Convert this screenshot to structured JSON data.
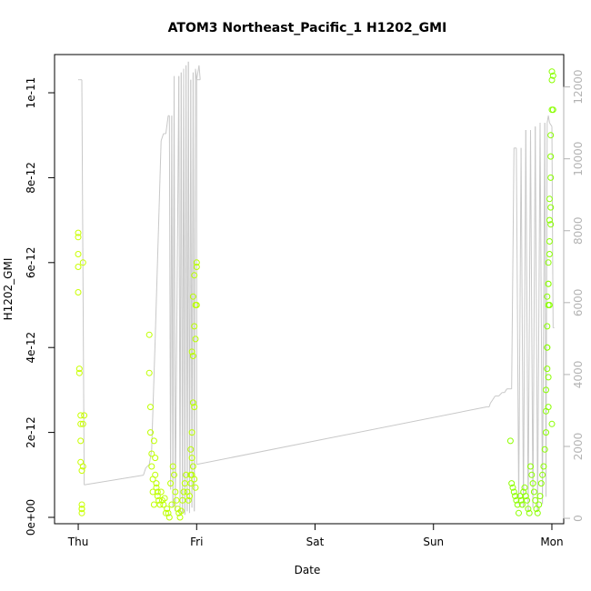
{
  "chart_data": {
    "type": "scatter",
    "title": "ATOM3 Northeast_Pacific_1 H1202_GMI",
    "xlabel": "Date",
    "ylabel": "H1202_GMI",
    "x_ticks": [
      "Thu",
      "Fri",
      "Sat",
      "Sun",
      "Mon"
    ],
    "x_unit": "days since Thu 00:00",
    "xlim": [
      -0.2,
      4.1
    ],
    "ylim": [
      -1.5e-13,
      1.09e-11
    ],
    "y_ticks": [
      {
        "value": 0,
        "label": "0e+00"
      },
      {
        "value": 2e-12,
        "label": "2e-12"
      },
      {
        "value": 4e-12,
        "label": "4e-12"
      },
      {
        "value": 6e-12,
        "label": "6e-12"
      },
      {
        "value": 8e-12,
        "label": "8e-12"
      },
      {
        "value": 1e-11,
        "label": "1e-11"
      }
    ],
    "y2lim": [
      -150,
      12900
    ],
    "y2_ticks": [
      {
        "value": 0,
        "label": "0"
      },
      {
        "value": 2000,
        "label": "2000"
      },
      {
        "value": 4000,
        "label": "4000"
      },
      {
        "value": 6000,
        "label": "6000"
      },
      {
        "value": 8000,
        "label": "8000"
      },
      {
        "value": 10000,
        "label": "10000"
      },
      {
        "value": 12000,
        "label": "12000"
      }
    ],
    "grid": false,
    "legend": "none",
    "colors": {
      "points_start": "#ccff00",
      "points_end": "#88ff00",
      "altitude_line": "#c8c8c8",
      "axis": "#000000",
      "right_axis": "#b3b3b3"
    },
    "series": [
      {
        "role": "h1202_gmi",
        "axis": "left",
        "kind": "points",
        "x": [
          0.0,
          0.0,
          0.0,
          0.0,
          0.0,
          0.01,
          0.01,
          0.02,
          0.02,
          0.02,
          0.02,
          0.03,
          0.03,
          0.03,
          0.03,
          0.03,
          0.04,
          0.04,
          0.04,
          0.05,
          0.6,
          0.6,
          0.61,
          0.61,
          0.62,
          0.62,
          0.63,
          0.63,
          0.64,
          0.64,
          0.65,
          0.65,
          0.66,
          0.66,
          0.67,
          0.67,
          0.68,
          0.69,
          0.7,
          0.71,
          0.72,
          0.73,
          0.74,
          0.75,
          0.76,
          0.77,
          0.78,
          0.79,
          0.8,
          0.81,
          0.82,
          0.83,
          0.84,
          0.85,
          0.86,
          0.87,
          0.88,
          0.89,
          0.9,
          0.91,
          0.92,
          0.93,
          0.94,
          0.95,
          0.96,
          0.97,
          0.98,
          0.99,
          1.0,
          1.0,
          0.99,
          0.98,
          0.97,
          0.96,
          0.95,
          0.96,
          0.97,
          0.98,
          0.99,
          1.0,
          0.98,
          0.97,
          0.96,
          0.95,
          3.65,
          3.66,
          3.67,
          3.68,
          3.69,
          3.7,
          3.71,
          3.72,
          3.73,
          3.74,
          3.75,
          3.76,
          3.77,
          3.78,
          3.79,
          3.8,
          3.81,
          3.82,
          3.83,
          3.84,
          3.85,
          3.86,
          3.87,
          3.88,
          3.89,
          3.9,
          3.91,
          3.92,
          3.93,
          3.94,
          3.95,
          3.95,
          3.95,
          3.96,
          3.96,
          3.96,
          3.97,
          3.97,
          3.97,
          3.98,
          3.98,
          3.98,
          3.99,
          3.99,
          3.99,
          4.0,
          4.0,
          4.0,
          4.01,
          4.01,
          3.96,
          3.97,
          3.98,
          3.99,
          4.0,
          3.97,
          3.98,
          3.99,
          3.96,
          3.97
        ],
        "y": [
          5.9e-12,
          6.7e-12,
          6.6e-12,
          5.3e-12,
          6.2e-12,
          3.5e-12,
          3.4e-12,
          2.4e-12,
          2.2e-12,
          1.8e-12,
          1.3e-12,
          1.1e-12,
          3e-13,
          2e-13,
          1e-13,
          2e-13,
          2.2e-12,
          1.2e-12,
          6e-12,
          2.4e-12,
          4.3e-12,
          3.4e-12,
          2.6e-12,
          2e-12,
          1.5e-12,
          1.2e-12,
          9e-13,
          6e-13,
          3e-13,
          1.8e-12,
          1.4e-12,
          1e-12,
          8e-13,
          7e-13,
          6e-13,
          5e-13,
          4e-13,
          3e-13,
          6e-13,
          4e-13,
          3e-13,
          4.5e-13,
          1e-13,
          2e-13,
          1e-13,
          0.0,
          8e-13,
          3e-13,
          1.2e-12,
          1e-12,
          6e-13,
          4e-13,
          2e-13,
          1e-13,
          0.0,
          1.5e-13,
          4e-13,
          6e-13,
          8e-13,
          1e-12,
          6e-13,
          4e-13,
          5e-13,
          8e-13,
          1e-12,
          2.7e-12,
          2.6e-12,
          4.2e-12,
          5e-12,
          5.9e-12,
          5e-12,
          4.5e-12,
          3.8e-12,
          2e-12,
          1.6e-12,
          1.4e-12,
          1.2e-12,
          9e-13,
          7e-13,
          6e-12,
          5.7e-12,
          5.2e-12,
          3.9e-12,
          1e-12,
          1.8e-12,
          8e-13,
          7e-13,
          6e-13,
          5e-13,
          4e-13,
          3e-13,
          1e-13,
          5e-13,
          4e-13,
          3e-13,
          6e-13,
          7e-13,
          5e-13,
          4e-13,
          2e-13,
          1e-13,
          1.2e-12,
          1e-12,
          8e-13,
          6e-13,
          4e-13,
          2e-13,
          1e-13,
          3e-13,
          5e-13,
          8e-13,
          1e-12,
          1.2e-12,
          1.6e-12,
          2e-12,
          2.5e-12,
          3e-12,
          3.5e-12,
          4e-12,
          4.5e-12,
          5e-12,
          5.5e-12,
          6e-12,
          6.5e-12,
          7e-12,
          7.5e-12,
          8e-12,
          8.5e-12,
          9e-12,
          9.6e-12,
          1.03e-11,
          1.05e-11,
          1.04e-11,
          9.6e-12,
          5.2e-12,
          5.5e-12,
          6.2e-12,
          7.3e-12,
          2.2e-12,
          2.6e-12,
          5e-12,
          6.9e-12,
          4e-12,
          3.3e-12
        ]
      },
      {
        "role": "altitude",
        "axis": "right",
        "kind": "line",
        "x": [
          0.0,
          0.01,
          0.03,
          0.05,
          0.55,
          0.57,
          0.6,
          0.62,
          0.65,
          0.7,
          0.72,
          0.74,
          0.76,
          0.77,
          0.78,
          0.79,
          0.8,
          0.81,
          0.82,
          0.85,
          0.86,
          0.87,
          0.88,
          0.89,
          0.9,
          0.91,
          0.92,
          0.93,
          0.94,
          0.95,
          0.96,
          0.97,
          0.98,
          0.99,
          1.0,
          1.02,
          1.03,
          1.0,
          1.0,
          3.45,
          3.46,
          3.47,
          3.48,
          3.5,
          3.52,
          3.55,
          3.58,
          3.6,
          3.62,
          3.64,
          3.66,
          3.68,
          3.7,
          3.72,
          3.74,
          3.76,
          3.78,
          3.8,
          3.82,
          3.84,
          3.86,
          3.88,
          3.9,
          3.92,
          3.94,
          3.95,
          3.96,
          3.97,
          3.98,
          4.0,
          4.01,
          4.02
        ],
        "y": [
          12200,
          12200,
          12200,
          930,
          1200,
          1400,
          1500,
          1900,
          5000,
          10500,
          10700,
          10700,
          11200,
          11200,
          800,
          11200,
          300,
          12300,
          200,
          12300,
          100,
          12400,
          150,
          12500,
          100,
          12600,
          200,
          12700,
          150,
          12200,
          300,
          12400,
          200,
          12500,
          12200,
          12600,
          12200,
          12200,
          1500,
          3100,
          3100,
          3100,
          3200,
          3300,
          3400,
          3400,
          3500,
          3500,
          3600,
          3600,
          3600,
          10300,
          10300,
          400,
          10300,
          300,
          10800,
          200,
          10800,
          300,
          10900,
          200,
          11000,
          400,
          11000,
          600,
          11000,
          11200,
          11000,
          10900,
          5300,
          5300
        ]
      }
    ]
  }
}
